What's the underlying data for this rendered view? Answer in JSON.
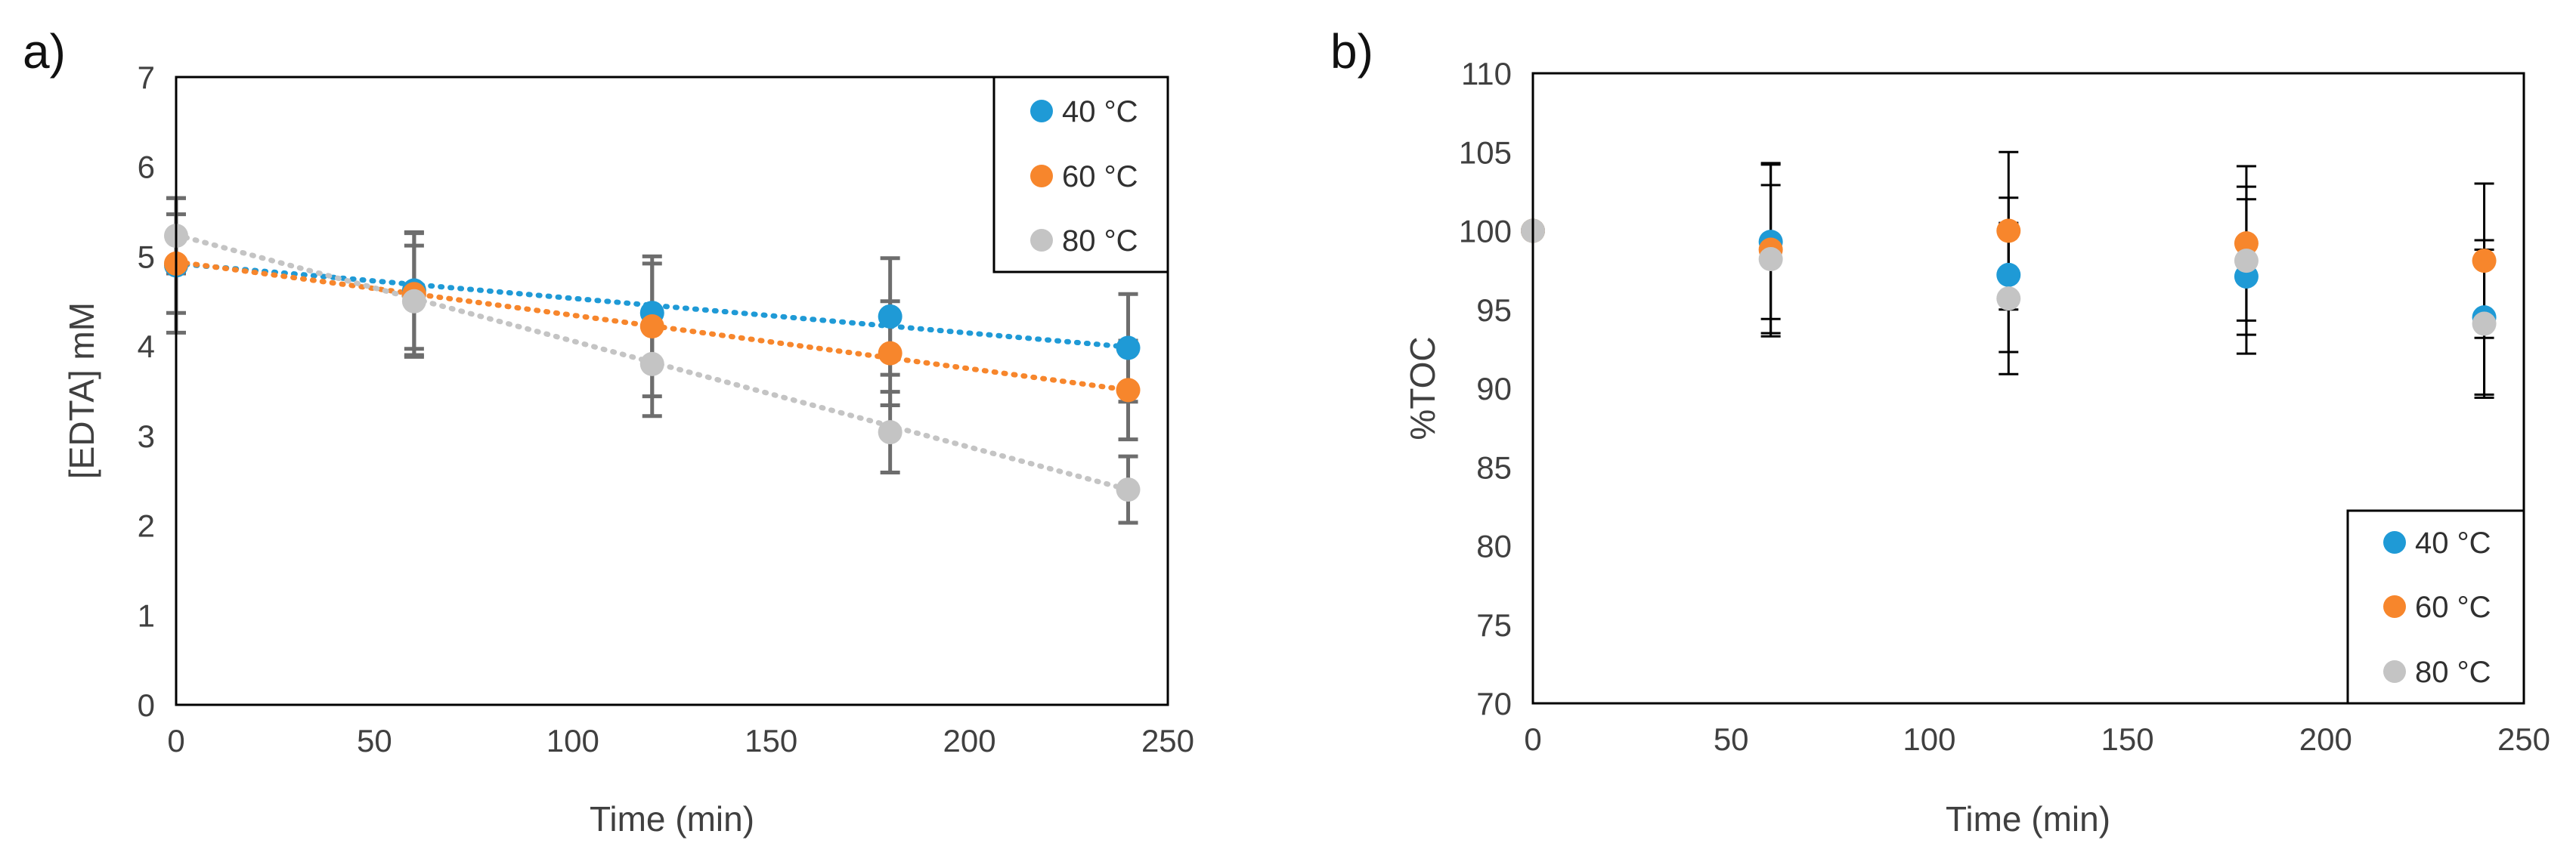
{
  "colors": {
    "c40": "#1f9ad6",
    "c60": "#f7862c",
    "c80": "#c4c4c4",
    "axis": "#000000",
    "errbar_a": "#6d6d6d",
    "errbar_b": "#000000"
  },
  "chart_data": [
    {
      "id": "a",
      "panel_label": "a)",
      "type": "scatter",
      "title": "",
      "xlabel": "Time (min)",
      "ylabel": "[EDTA] mM",
      "xlim": [
        0,
        250
      ],
      "ylim": [
        0,
        7
      ],
      "xticks": [
        0,
        50,
        100,
        150,
        200,
        250
      ],
      "yticks": [
        0,
        1,
        2,
        3,
        4,
        5,
        6,
        7
      ],
      "grid": false,
      "legend_position": "top-right",
      "trendlines": true,
      "series": [
        {
          "name": "40 °C",
          "color_key": "c40",
          "x": [
            0,
            60,
            120,
            180,
            240
          ],
          "y": [
            4.9,
            4.62,
            4.37,
            4.33,
            3.98
          ],
          "err": [
            0.75,
            0.65,
            0.55,
            0.65,
            0.6
          ],
          "trend": [
            4.92,
            3.99
          ]
        },
        {
          "name": "60 °C",
          "color_key": "c60",
          "x": [
            0,
            60,
            120,
            180,
            240
          ],
          "y": [
            4.92,
            4.58,
            4.22,
            3.92,
            3.51
          ],
          "err": [
            0.55,
            0.68,
            0.78,
            0.58,
            0.55
          ],
          "trend": [
            4.94,
            3.51
          ]
        },
        {
          "name": "80 °C",
          "color_key": "c80",
          "x": [
            0,
            60,
            120,
            180,
            240
          ],
          "y": [
            5.23,
            4.5,
            3.8,
            3.04,
            2.4
          ],
          "err": [
            0.42,
            0.62,
            0.58,
            0.45,
            0.37
          ],
          "trend": [
            5.24,
            2.4
          ]
        }
      ]
    },
    {
      "id": "b",
      "panel_label": "b)",
      "type": "scatter",
      "title": "",
      "xlabel": "Time (min)",
      "ylabel": "%TOC",
      "xlim": [
        0,
        250
      ],
      "ylim": [
        70,
        110
      ],
      "xticks": [
        0,
        50,
        100,
        150,
        200,
        250
      ],
      "yticks": [
        70,
        75,
        80,
        85,
        90,
        95,
        100,
        105,
        110
      ],
      "grid": false,
      "legend_position": "bottom-right",
      "trendlines": false,
      "series": [
        {
          "name": "40 °C",
          "color_key": "c40",
          "x": [
            0,
            60,
            120,
            180,
            240
          ],
          "y": [
            100,
            99.3,
            97.2,
            97.1,
            94.5
          ],
          "err": [
            0,
            4.9,
            4.9,
            4.9,
            4.9
          ]
        },
        {
          "name": "60 °C",
          "color_key": "c60",
          "x": [
            0,
            60,
            120,
            180,
            240
          ],
          "y": [
            100,
            98.8,
            100.0,
            99.2,
            98.1
          ],
          "err": [
            0,
            5.5,
            5.0,
            4.9,
            4.9
          ]
        },
        {
          "name": "80 °C",
          "color_key": "c80",
          "x": [
            0,
            60,
            120,
            180,
            240
          ],
          "y": [
            100,
            98.2,
            95.7,
            98.1,
            94.1
          ],
          "err": [
            0,
            4.7,
            4.8,
            4.7,
            4.7
          ]
        }
      ]
    }
  ]
}
